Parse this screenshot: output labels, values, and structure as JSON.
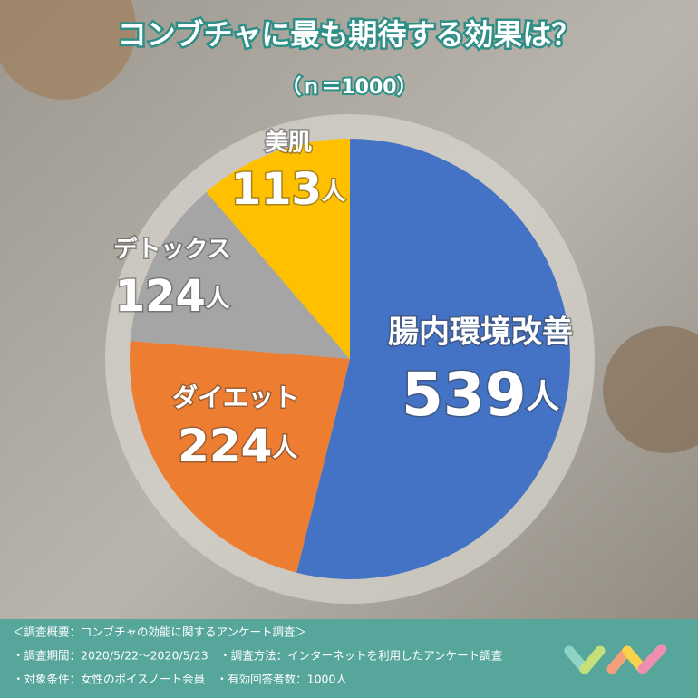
{
  "chart_data": {
    "type": "pie",
    "title": "コンブチャに最も期待する効果は？",
    "subtitle": "（ｎ＝1000）",
    "categories": [
      "腸内環境改善",
      "ダイエット",
      "デトックス",
      "美肌"
    ],
    "values": [
      539,
      224,
      124,
      113
    ],
    "value_labels": [
      "539人",
      "224人",
      "124人",
      "113人"
    ],
    "colors": [
      "#4472c4",
      "#ed7d31",
      "#a5a5a5",
      "#ffc000"
    ],
    "notes": [
      "＜調査概要：コンブチャの効能に関するアンケート調査＞",
      "・調査期間：2020/5/22〜2020/5/23　・調査方法：インターネットを利用したアンケート調査",
      "・対象条件：女性のポイスノート会員　・有効回答者数：1000人"
    ]
  }
}
